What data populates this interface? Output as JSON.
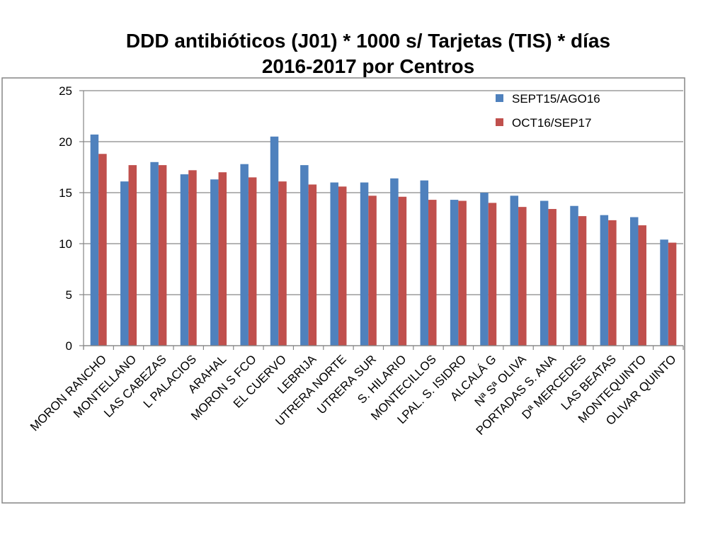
{
  "colors": {
    "series1": "#4F81BD",
    "series2": "#C0504D",
    "grid": "#868686",
    "frame": "#868686"
  },
  "chart_data": {
    "type": "bar",
    "title": "DDD antibióticos (J01) * 1000 s/ Tarjetas (TIS) * días 2016-2017 por Centros",
    "title_lines": [
      "DDD antibióticos (J01) * 1000 s/ Tarjetas (TIS) * días",
      "2016-2017 por Centros"
    ],
    "xlabel": "",
    "ylabel": "",
    "ylim": [
      0,
      25
    ],
    "yticks": [
      0,
      5,
      10,
      15,
      20,
      25
    ],
    "grid": true,
    "legend_position": "top-right",
    "categories": [
      "MORON RANCHO",
      "MONTELLANO",
      "LAS CABEZAS",
      "L PALACIOS",
      "ARAHAL",
      "MORON S FCO",
      "EL CUERVO",
      "LEBRIJA",
      "UTRERA NORTE",
      "UTRERA SUR",
      "S. HILARIO",
      "MONTECILLOS",
      "LPAL. S. ISIDRO",
      "ALCALÁ G",
      "Nª Sª OLIVA",
      "PORTADAS S. ANA",
      "Dª MERCEDES",
      "LAS BEATAS",
      "MONTEQUINTO",
      "OLIVAR QUINTO"
    ],
    "series": [
      {
        "name": "SEPT15/AGO16",
        "values": [
          20.7,
          16.1,
          18.0,
          16.8,
          16.3,
          17.8,
          20.5,
          17.7,
          16.0,
          16.0,
          16.4,
          16.2,
          14.3,
          15.0,
          14.7,
          14.2,
          13.7,
          12.8,
          12.6,
          10.4
        ]
      },
      {
        "name": "OCT16/SEP17",
        "values": [
          18.8,
          17.7,
          17.7,
          17.2,
          17.0,
          16.5,
          16.1,
          15.8,
          15.6,
          14.7,
          14.6,
          14.3,
          14.2,
          14.0,
          13.6,
          13.4,
          12.7,
          12.3,
          11.8,
          10.1
        ]
      }
    ]
  }
}
